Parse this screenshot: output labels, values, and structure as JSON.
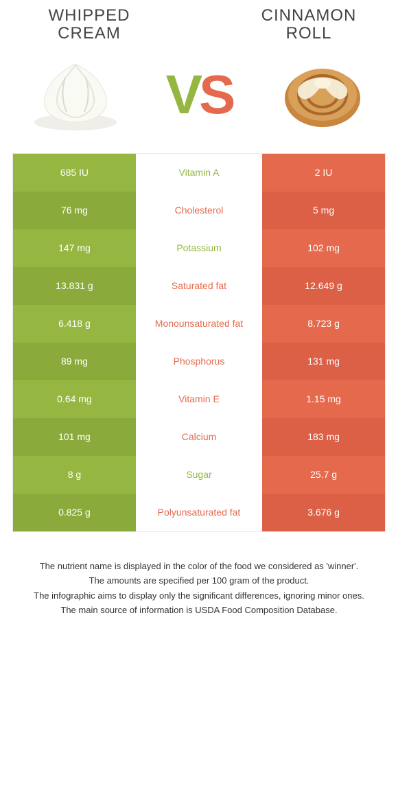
{
  "left_title": "WHIPPED CREAM",
  "right_title": "CINNAMON ROLL",
  "vs_v": "V",
  "vs_s": "S",
  "colors": {
    "green": "#95b742",
    "green_alt": "#8aab3c",
    "orange": "#e56a4d",
    "orange_alt": "#db6046",
    "white": "#ffffff"
  },
  "rows": [
    {
      "left": "685 IU",
      "label": "Vitamin A",
      "right": "2 IU",
      "winner": "left"
    },
    {
      "left": "76 mg",
      "label": "Cholesterol",
      "right": "5 mg",
      "winner": "right"
    },
    {
      "left": "147 mg",
      "label": "Potassium",
      "right": "102 mg",
      "winner": "left"
    },
    {
      "left": "13.831 g",
      "label": "Saturated fat",
      "right": "12.649 g",
      "winner": "right"
    },
    {
      "left": "6.418 g",
      "label": "Monounsaturated fat",
      "right": "8.723 g",
      "winner": "right"
    },
    {
      "left": "89 mg",
      "label": "Phosphorus",
      "right": "131 mg",
      "winner": "right"
    },
    {
      "left": "0.64 mg",
      "label": "Vitamin E",
      "right": "1.15 mg",
      "winner": "right"
    },
    {
      "left": "101 mg",
      "label": "Calcium",
      "right": "183 mg",
      "winner": "right"
    },
    {
      "left": "8 g",
      "label": "Sugar",
      "right": "25.7 g",
      "winner": "left"
    },
    {
      "left": "0.825 g",
      "label": "Polyunsaturated fat",
      "right": "3.676 g",
      "winner": "right"
    }
  ],
  "footnotes": [
    "The nutrient name is displayed in the color of the food we considered as 'winner'.",
    "The amounts are specified per 100 gram of the product.",
    "The infographic aims to display only the significant differences, ignoring minor ones.",
    "The main source of information is USDA Food Composition Database."
  ]
}
